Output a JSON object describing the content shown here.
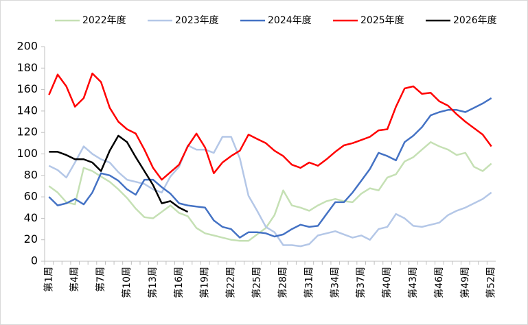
{
  "chart_data": {
    "type": "line",
    "categories": [
      "第1周",
      null,
      null,
      "第4周",
      null,
      null,
      "第7周",
      null,
      null,
      "第10周",
      null,
      null,
      "第13周",
      null,
      null,
      "第16周",
      null,
      null,
      "第19周",
      null,
      null,
      "第22周",
      null,
      null,
      "第25周",
      null,
      null,
      "第28周",
      null,
      null,
      "第31周",
      null,
      null,
      "第34周",
      null,
      null,
      "第37周",
      null,
      null,
      "第40周",
      null,
      null,
      "第43周",
      null,
      null,
      "第46周",
      null,
      null,
      "第49周",
      null,
      null,
      "第52周"
    ],
    "series": [
      {
        "name": "2022年度",
        "color": "#c5e0b4",
        "values": [
          70,
          64,
          55,
          53,
          87,
          84,
          79,
          74,
          67,
          59,
          49,
          41,
          40,
          46,
          52,
          45,
          42,
          31,
          26,
          24,
          22,
          20,
          19,
          19,
          25,
          31,
          43,
          66,
          52,
          50,
          47,
          52,
          56,
          58,
          56,
          55,
          63,
          68,
          66,
          78,
          81,
          93,
          97,
          104,
          111,
          107,
          104,
          99,
          101,
          88,
          84,
          91
        ]
      },
      {
        "name": "2023年度",
        "color": "#b4c7e7",
        "values": [
          89,
          85,
          78,
          92,
          107,
          100,
          95,
          92,
          83,
          76,
          74,
          72,
          67,
          64,
          79,
          88,
          108,
          104,
          104,
          101,
          116,
          116,
          96,
          61,
          47,
          32,
          27,
          15,
          15,
          14,
          16,
          24,
          26,
          28,
          25,
          22,
          24,
          20,
          30,
          32,
          44,
          40,
          33,
          32,
          34,
          36,
          43,
          47,
          50,
          54,
          58,
          64
        ]
      },
      {
        "name": "2024年度",
        "color": "#4472c4",
        "values": [
          60,
          52,
          54,
          58,
          53,
          64,
          82,
          80,
          75,
          67,
          62,
          76,
          76,
          69,
          63,
          54,
          52,
          51,
          50,
          38,
          32,
          30,
          22,
          27,
          27,
          26,
          23,
          25,
          30,
          34,
          32,
          33,
          44,
          55,
          55,
          64,
          75,
          86,
          101,
          98,
          94,
          111,
          117,
          125,
          136,
          139,
          141,
          141,
          139,
          143,
          147,
          152
        ]
      },
      {
        "name": "2025年度",
        "color": "#ff0000",
        "values": [
          155,
          174,
          163,
          144,
          152,
          175,
          167,
          143,
          130,
          123,
          119,
          104,
          87,
          76,
          83,
          90,
          107,
          119,
          106,
          82,
          92,
          98,
          103,
          118,
          114,
          110,
          103,
          98,
          90,
          87,
          92,
          89,
          95,
          102,
          108,
          110,
          113,
          116,
          122,
          123,
          144,
          161,
          163,
          156,
          157,
          149,
          145,
          137,
          130,
          124,
          118,
          107
        ]
      },
      {
        "name": "2026年度",
        "color": "#000000",
        "values": [
          102,
          102,
          99,
          95,
          95,
          92,
          84,
          103,
          117,
          111,
          97,
          84,
          71,
          54,
          56,
          50,
          46,
          null,
          null,
          null,
          null,
          null,
          null,
          null,
          null,
          null,
          null,
          null,
          null,
          null,
          null,
          null,
          null,
          null,
          null,
          null,
          null,
          null,
          null,
          null,
          null,
          null,
          null,
          null,
          null,
          null,
          null,
          null,
          null,
          null,
          null,
          null
        ]
      }
    ],
    "ylim": [
      0,
      200
    ],
    "yticks": [
      0,
      20,
      40,
      60,
      80,
      100,
      120,
      140,
      160,
      180,
      200
    ],
    "grid": false,
    "legend": "top"
  }
}
